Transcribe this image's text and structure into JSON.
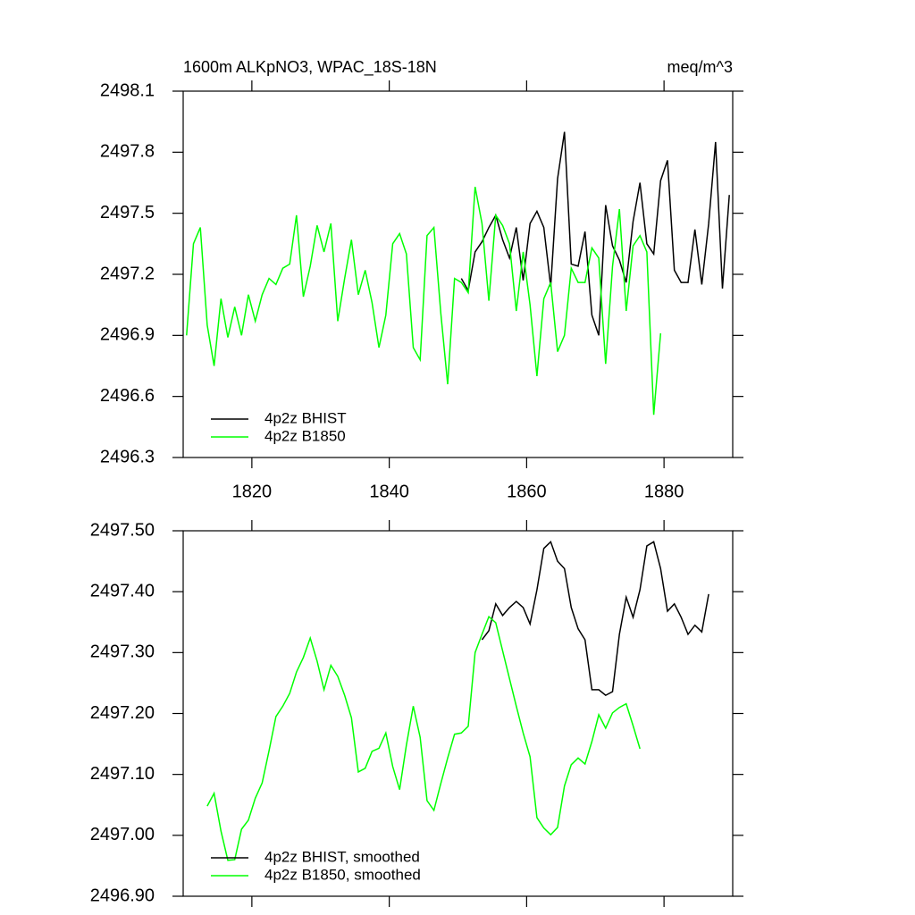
{
  "chart_data": [
    {
      "type": "line",
      "title": "1600m ALKpNO3, WPAC_18S-18N",
      "units": "meq/m^3",
      "xlim": [
        1810,
        1890
      ],
      "xticks": [
        1820,
        1840,
        1860,
        1880
      ],
      "ylim": [
        2496.3,
        2498.1
      ],
      "yticks": [
        2498.1,
        2497.8,
        2497.5,
        2497.2,
        2496.9,
        2496.6,
        2496.3
      ],
      "legend": "lower left",
      "series": [
        {
          "name": "4p2z BHIST",
          "color": "#000000",
          "x": [
            1850.5,
            1851.5,
            1852.5,
            1853.5,
            1854.5,
            1855.5,
            1856.5,
            1857.5,
            1858.5,
            1859.5,
            1860.5,
            1861.5,
            1862.5,
            1863.5,
            1864.5,
            1865.5,
            1866.5,
            1867.5,
            1868.5,
            1869.5,
            1870.5,
            1871.5,
            1872.5,
            1873.5,
            1874.5,
            1875.5,
            1876.5,
            1877.5,
            1878.5,
            1879.5,
            1880.5,
            1881.5,
            1882.5,
            1883.5,
            1884.5,
            1885.5,
            1886.5,
            1887.5,
            1888.5,
            1889.5
          ],
          "values": [
            2497.18,
            2497.12,
            2497.31,
            2497.36,
            2497.43,
            2497.49,
            2497.37,
            2497.28,
            2497.43,
            2497.17,
            2497.45,
            2497.51,
            2497.43,
            2497.14,
            2497.67,
            2497.9,
            2497.25,
            2497.24,
            2497.41,
            2497.0,
            2496.9,
            2497.54,
            2497.34,
            2497.27,
            2497.16,
            2497.46,
            2497.65,
            2497.35,
            2497.3,
            2497.66,
            2497.76,
            2497.22,
            2497.16,
            2497.16,
            2497.42,
            2497.15,
            2497.45,
            2497.85,
            2497.13,
            2497.59
          ]
        },
        {
          "name": "4p2z B1850",
          "color": "#00ff00",
          "x": [
            1810.5,
            1811.5,
            1812.5,
            1813.5,
            1814.5,
            1815.5,
            1816.5,
            1817.5,
            1818.5,
            1819.5,
            1820.5,
            1821.5,
            1822.5,
            1823.5,
            1824.5,
            1825.5,
            1826.5,
            1827.5,
            1828.5,
            1829.5,
            1830.5,
            1831.5,
            1832.5,
            1833.5,
            1834.5,
            1835.5,
            1836.5,
            1837.5,
            1838.5,
            1839.5,
            1840.5,
            1841.5,
            1842.5,
            1843.5,
            1844.5,
            1845.5,
            1846.5,
            1847.5,
            1848.5,
            1849.5,
            1850.5,
            1851.5,
            1852.5,
            1853.5,
            1854.5,
            1855.5,
            1856.5,
            1857.5,
            1858.5,
            1859.5,
            1860.5,
            1861.5,
            1862.5,
            1863.5,
            1864.5,
            1865.5,
            1866.5,
            1867.5,
            1868.5,
            1869.5,
            1870.5,
            1871.5,
            1872.5,
            1873.5,
            1874.5,
            1875.5,
            1876.5,
            1877.5,
            1878.5,
            1879.5
          ],
          "values": [
            2496.9,
            2497.35,
            2497.43,
            2496.95,
            2496.75,
            2497.08,
            2496.89,
            2497.04,
            2496.9,
            2497.1,
            2496.97,
            2497.1,
            2497.18,
            2497.15,
            2497.23,
            2497.25,
            2497.49,
            2497.09,
            2497.24,
            2497.44,
            2497.31,
            2497.45,
            2496.97,
            2497.18,
            2497.37,
            2497.1,
            2497.22,
            2497.06,
            2496.84,
            2497.0,
            2497.35,
            2497.4,
            2497.3,
            2496.84,
            2496.78,
            2497.39,
            2497.43,
            2497.01,
            2496.66,
            2497.18,
            2497.16,
            2497.11,
            2497.63,
            2497.45,
            2497.07,
            2497.49,
            2497.44,
            2497.35,
            2497.02,
            2497.31,
            2497.05,
            2496.7,
            2497.08,
            2497.16,
            2496.82,
            2496.9,
            2497.23,
            2497.16,
            2497.16,
            2497.33,
            2497.28,
            2496.76,
            2497.24,
            2497.52,
            2497.02,
            2497.34,
            2497.39,
            2497.31,
            2496.51,
            2496.91
          ]
        }
      ]
    },
    {
      "type": "line",
      "xlim": [
        1810,
        1890
      ],
      "ylim": [
        2496.9,
        2497.5
      ],
      "yticks": [
        {
          "value": 2497.5,
          "label": "2497.50"
        },
        {
          "value": 2497.4,
          "label": "2497.40"
        },
        {
          "value": 2497.3,
          "label": "2497.30"
        },
        {
          "value": 2497.2,
          "label": "2497.20"
        },
        {
          "value": 2497.1,
          "label": "2497.10"
        },
        {
          "value": 2497.0,
          "label": "2497.00"
        },
        {
          "value": 2496.9,
          "label": "2496.90"
        }
      ],
      "legend": "lower left",
      "series": [
        {
          "name": "4p2z BHIST, smoothed",
          "color": "#000000",
          "x": [
            1853.5,
            1854.5,
            1855.5,
            1856.5,
            1857.5,
            1858.5,
            1859.5,
            1860.5,
            1861.5,
            1862.5,
            1863.5,
            1864.5,
            1865.5,
            1866.5,
            1867.5,
            1868.5,
            1869.5,
            1870.5,
            1871.5,
            1872.5,
            1873.5,
            1874.5,
            1875.5,
            1876.5,
            1877.5,
            1878.5,
            1879.5,
            1880.5,
            1881.5,
            1882.5,
            1883.5,
            1884.5,
            1885.5,
            1886.5
          ],
          "values": [
            2497.321,
            2497.336,
            2497.38,
            2497.361,
            2497.374,
            2497.384,
            2497.374,
            2497.347,
            2497.403,
            2497.471,
            2497.482,
            2497.45,
            2497.438,
            2497.374,
            2497.339,
            2497.321,
            2497.239,
            2497.239,
            2497.23,
            2497.236,
            2497.33,
            2497.391,
            2497.358,
            2497.403,
            2497.475,
            2497.482,
            2497.438,
            2497.368,
            2497.38,
            2497.358,
            2497.33,
            2497.345,
            2497.334,
            2497.396
          ]
        },
        {
          "name": "4p2z B1850, smoothed",
          "color": "#00ff00",
          "x": [
            1813.5,
            1814.5,
            1815.5,
            1816.5,
            1817.5,
            1818.5,
            1819.5,
            1820.5,
            1821.5,
            1822.5,
            1823.5,
            1824.5,
            1825.5,
            1826.5,
            1827.5,
            1828.5,
            1829.5,
            1830.5,
            1831.5,
            1832.5,
            1833.5,
            1834.5,
            1835.5,
            1836.5,
            1837.5,
            1838.5,
            1839.5,
            1840.5,
            1841.5,
            1842.5,
            1843.5,
            1844.5,
            1845.5,
            1846.5,
            1847.5,
            1848.5,
            1849.5,
            1850.5,
            1851.5,
            1852.5,
            1853.5,
            1854.5,
            1855.5,
            1856.5,
            1857.5,
            1858.5,
            1859.5,
            1860.5,
            1861.5,
            1862.5,
            1863.5,
            1864.5,
            1865.5,
            1866.5,
            1867.5,
            1868.5,
            1869.5,
            1870.5,
            1871.5,
            1872.5,
            1873.5,
            1874.5,
            1875.5,
            1876.5
          ],
          "values": [
            2497.048,
            2497.069,
            2497.007,
            2496.959,
            2496.96,
            2497.01,
            2497.025,
            2497.061,
            2497.086,
            2497.139,
            2497.195,
            2497.212,
            2497.233,
            2497.268,
            2497.292,
            2497.324,
            2497.286,
            2497.239,
            2497.279,
            2497.261,
            2497.23,
            2497.193,
            2497.104,
            2497.11,
            2497.138,
            2497.143,
            2497.168,
            2497.113,
            2497.075,
            2497.148,
            2497.212,
            2497.161,
            2497.057,
            2497.041,
            2497.085,
            2497.127,
            2497.166,
            2497.168,
            2497.179,
            2497.3,
            2497.33,
            2497.359,
            2497.349,
            2497.303,
            2497.257,
            2497.212,
            2497.168,
            2497.129,
            2497.029,
            2497.012,
            2497.001,
            2497.013,
            2497.081,
            2497.116,
            2497.127,
            2497.117,
            2497.154,
            2497.198,
            2497.176,
            2497.201,
            2497.21,
            2497.216,
            2497.18,
            2497.142
          ]
        }
      ]
    }
  ]
}
